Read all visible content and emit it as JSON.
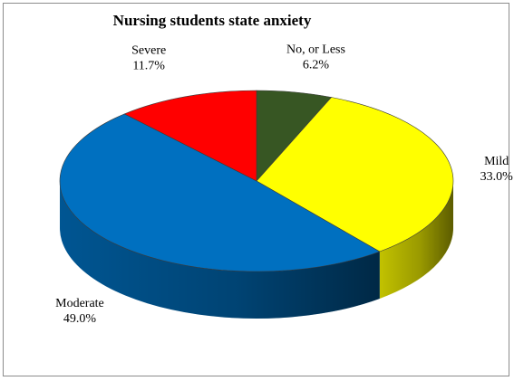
{
  "chart_data": {
    "type": "pie",
    "title": "Nursing students state anxiety",
    "categories": [
      "No, or Less",
      "Mild",
      "Moderate",
      "Severe"
    ],
    "values": [
      6.2,
      33.0,
      49.0,
      11.7
    ],
    "value_labels": [
      "6.2%",
      "33.0%",
      "49.0%",
      "11.7%"
    ],
    "colors": [
      "#375623",
      "#ffff00",
      "#0070c0",
      "#ff0000"
    ],
    "three_d": true,
    "legend": "none"
  }
}
